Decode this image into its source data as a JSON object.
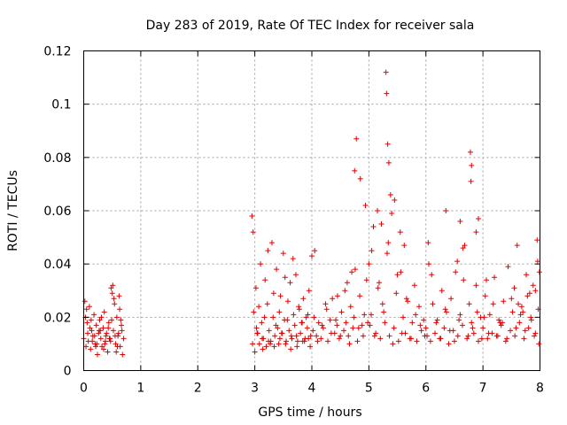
{
  "chart_data": {
    "type": "scatter",
    "title": "Day 283 of 2019, Rate Of TEC Index for receiver sala",
    "xlabel": "GPS time / hours",
    "ylabel": "ROTI / TECUs",
    "xlim": [
      0,
      8
    ],
    "ylim": [
      0,
      0.12
    ],
    "x_ticks": [
      0,
      1,
      2,
      3,
      4,
      5,
      6,
      7,
      8
    ],
    "x_tick_labels": [
      "0",
      "1",
      "2",
      "3",
      "4",
      "5",
      "6",
      "7",
      "8"
    ],
    "y_ticks": [
      0,
      0.02,
      0.04,
      0.06,
      0.08,
      0.1,
      0.12
    ],
    "y_tick_labels": [
      "0",
      "0.02",
      "0.04",
      "0.06",
      "0.08",
      "0.1",
      "0.12"
    ],
    "grid": true,
    "marker": "+",
    "color": "#e00000",
    "series": [
      {
        "name": "ROTI",
        "x": [
          0.0,
          0.02,
          0.04,
          0.06,
          0.08,
          0.1,
          0.12,
          0.14,
          0.16,
          0.18,
          0.2,
          0.22,
          0.24,
          0.26,
          0.28,
          0.3,
          0.32,
          0.34,
          0.36,
          0.38,
          0.4,
          0.42,
          0.44,
          0.46,
          0.48,
          0.5,
          0.52,
          0.54,
          0.56,
          0.58,
          0.6,
          0.62,
          0.64,
          0.66,
          0.68,
          0.7,
          0.03,
          0.07,
          0.11,
          0.15,
          0.19,
          0.23,
          0.27,
          0.31,
          0.35,
          0.39,
          0.43,
          0.47,
          0.51,
          0.55,
          0.59,
          0.63,
          0.67,
          0.05,
          0.13,
          0.21,
          0.29,
          0.37,
          0.45,
          0.49,
          0.53,
          0.57,
          0.61,
          0.65,
          2.95,
          2.98,
          3.0,
          3.02,
          3.05,
          3.08,
          3.1,
          3.12,
          3.15,
          3.18,
          3.2,
          3.22,
          3.25,
          3.28,
          3.3,
          3.32,
          3.35,
          3.38,
          3.4,
          3.42,
          3.45,
          3.48,
          3.5,
          3.52,
          3.55,
          3.58,
          3.6,
          3.62,
          3.65,
          3.68,
          3.7,
          3.72,
          3.75,
          3.78,
          3.8,
          3.82,
          3.85,
          3.88,
          3.9,
          3.92,
          3.95,
          3.98,
          2.97,
          3.03,
          3.07,
          3.13,
          3.17,
          3.23,
          3.27,
          3.33,
          3.37,
          3.43,
          3.47,
          3.53,
          3.57,
          3.63,
          3.67,
          3.73,
          3.77,
          3.83,
          3.87,
          3.93,
          3.97,
          2.96,
          3.04,
          3.14,
          3.24,
          3.34,
          3.44,
          3.54,
          3.64,
          3.74,
          3.84,
          3.94,
          4.0,
          4.04,
          4.08,
          4.12,
          4.16,
          4.2,
          4.24,
          4.28,
          4.32,
          4.36,
          4.4,
          4.44,
          4.48,
          4.52,
          4.56,
          4.6,
          4.64,
          4.68,
          4.72,
          4.76,
          4.8,
          4.84,
          4.88,
          4.92,
          4.96,
          4.02,
          4.1,
          4.18,
          4.26,
          4.34,
          4.42,
          4.5,
          4.58,
          4.66,
          4.74,
          4.82,
          4.9,
          4.98,
          4.05,
          4.45,
          4.62,
          4.7,
          4.75,
          4.78,
          4.85,
          4.94,
          5.0,
          5.04,
          5.08,
          5.12,
          5.16,
          5.2,
          5.24,
          5.28,
          5.32,
          5.36,
          5.4,
          5.44,
          5.48,
          5.52,
          5.56,
          5.6,
          5.64,
          5.68,
          5.72,
          5.76,
          5.8,
          5.84,
          5.88,
          5.92,
          5.96,
          5.02,
          5.1,
          5.18,
          5.26,
          5.34,
          5.42,
          5.5,
          5.58,
          5.66,
          5.74,
          5.82,
          5.9,
          5.98,
          5.05,
          5.15,
          5.22,
          5.3,
          5.31,
          5.33,
          5.35,
          5.38,
          5.45,
          5.55,
          5.62,
          6.0,
          6.04,
          6.08,
          6.12,
          6.16,
          6.2,
          6.24,
          6.28,
          6.32,
          6.36,
          6.4,
          6.44,
          6.48,
          6.52,
          6.56,
          6.6,
          6.64,
          6.68,
          6.72,
          6.76,
          6.8,
          6.84,
          6.88,
          6.92,
          6.96,
          6.02,
          6.1,
          6.18,
          6.26,
          6.34,
          6.42,
          6.5,
          6.58,
          6.66,
          6.74,
          6.82,
          6.9,
          6.98,
          6.05,
          6.35,
          6.55,
          6.6,
          6.65,
          6.78,
          6.79,
          6.8,
          6.88,
          6.92,
          7.0,
          7.04,
          7.08,
          7.12,
          7.16,
          7.2,
          7.24,
          7.28,
          7.32,
          7.36,
          7.4,
          7.44,
          7.48,
          7.52,
          7.56,
          7.6,
          7.64,
          7.68,
          7.72,
          7.76,
          7.8,
          7.84,
          7.88,
          7.92,
          7.96,
          7.98,
          7.02,
          7.1,
          7.18,
          7.26,
          7.34,
          7.42,
          7.5,
          7.58,
          7.66,
          7.74,
          7.82,
          7.9,
          7.97,
          7.06,
          7.3,
          7.55,
          7.62,
          7.7,
          7.78,
          7.85,
          7.92,
          7.95,
          7.99
        ],
        "y": [
          0.012,
          0.026,
          0.009,
          0.018,
          0.011,
          0.024,
          0.008,
          0.015,
          0.013,
          0.021,
          0.01,
          0.017,
          0.006,
          0.014,
          0.019,
          0.012,
          0.009,
          0.016,
          0.022,
          0.011,
          0.014,
          0.007,
          0.018,
          0.012,
          0.031,
          0.029,
          0.015,
          0.025,
          0.01,
          0.02,
          0.013,
          0.028,
          0.009,
          0.017,
          0.006,
          0.012,
          0.02,
          0.014,
          0.016,
          0.011,
          0.013,
          0.01,
          0.015,
          0.02,
          0.008,
          0.013,
          0.016,
          0.011,
          0.032,
          0.013,
          0.009,
          0.023,
          0.015,
          0.023,
          0.019,
          0.009,
          0.015,
          0.01,
          0.012,
          0.019,
          0.027,
          0.007,
          0.014,
          0.019,
          0.058,
          0.022,
          0.007,
          0.031,
          0.014,
          0.01,
          0.04,
          0.018,
          0.012,
          0.034,
          0.009,
          0.025,
          0.015,
          0.011,
          0.048,
          0.02,
          0.013,
          0.038,
          0.016,
          0.01,
          0.028,
          0.014,
          0.044,
          0.019,
          0.011,
          0.026,
          0.015,
          0.033,
          0.012,
          0.021,
          0.017,
          0.036,
          0.011,
          0.023,
          0.014,
          0.018,
          0.027,
          0.012,
          0.02,
          0.016,
          0.03,
          0.013,
          0.052,
          0.016,
          0.024,
          0.012,
          0.02,
          0.045,
          0.01,
          0.029,
          0.017,
          0.022,
          0.014,
          0.035,
          0.019,
          0.008,
          0.042,
          0.013,
          0.024,
          0.018,
          0.011,
          0.021,
          0.009,
          0.01,
          0.014,
          0.008,
          0.011,
          0.009,
          0.012,
          0.01,
          0.013,
          0.009,
          0.011,
          0.012,
          0.043,
          0.02,
          0.013,
          0.018,
          0.012,
          0.016,
          0.025,
          0.011,
          0.019,
          0.027,
          0.014,
          0.017,
          0.012,
          0.022,
          0.015,
          0.018,
          0.013,
          0.024,
          0.016,
          0.038,
          0.011,
          0.028,
          0.017,
          0.021,
          0.034,
          0.015,
          0.011,
          0.017,
          0.023,
          0.014,
          0.019,
          0.013,
          0.03,
          0.01,
          0.02,
          0.016,
          0.013,
          0.018,
          0.045,
          0.028,
          0.033,
          0.037,
          0.075,
          0.087,
          0.072,
          0.062,
          0.04,
          0.021,
          0.054,
          0.014,
          0.031,
          0.012,
          0.025,
          0.018,
          0.044,
          0.013,
          0.059,
          0.016,
          0.029,
          0.011,
          0.037,
          0.02,
          0.014,
          0.026,
          0.012,
          0.018,
          0.032,
          0.011,
          0.024,
          0.015,
          0.019,
          0.017,
          0.013,
          0.033,
          0.022,
          0.048,
          0.01,
          0.036,
          0.014,
          0.027,
          0.012,
          0.021,
          0.017,
          0.013,
          0.045,
          0.06,
          0.055,
          0.112,
          0.104,
          0.085,
          0.078,
          0.066,
          0.064,
          0.052,
          0.047,
          0.016,
          0.048,
          0.011,
          0.025,
          0.014,
          0.019,
          0.012,
          0.03,
          0.016,
          0.022,
          0.01,
          0.027,
          0.015,
          0.037,
          0.013,
          0.021,
          0.017,
          0.047,
          0.012,
          0.025,
          0.018,
          0.014,
          0.032,
          0.011,
          0.02,
          0.013,
          0.036,
          0.018,
          0.012,
          0.023,
          0.015,
          0.011,
          0.019,
          0.034,
          0.013,
          0.016,
          0.022,
          0.012,
          0.04,
          0.06,
          0.041,
          0.056,
          0.046,
          0.082,
          0.071,
          0.077,
          0.052,
          0.057,
          0.016,
          0.028,
          0.012,
          0.021,
          0.014,
          0.035,
          0.013,
          0.019,
          0.017,
          0.026,
          0.011,
          0.039,
          0.015,
          0.022,
          0.013,
          0.047,
          0.018,
          0.024,
          0.012,
          0.036,
          0.016,
          0.02,
          0.032,
          0.014,
          0.041,
          0.01,
          0.02,
          0.014,
          0.025,
          0.013,
          0.018,
          0.012,
          0.027,
          0.016,
          0.021,
          0.015,
          0.029,
          0.013,
          0.023,
          0.034,
          0.018,
          0.031,
          0.025,
          0.022,
          0.028,
          0.019,
          0.03,
          0.049,
          0.037
        ]
      }
    ]
  }
}
